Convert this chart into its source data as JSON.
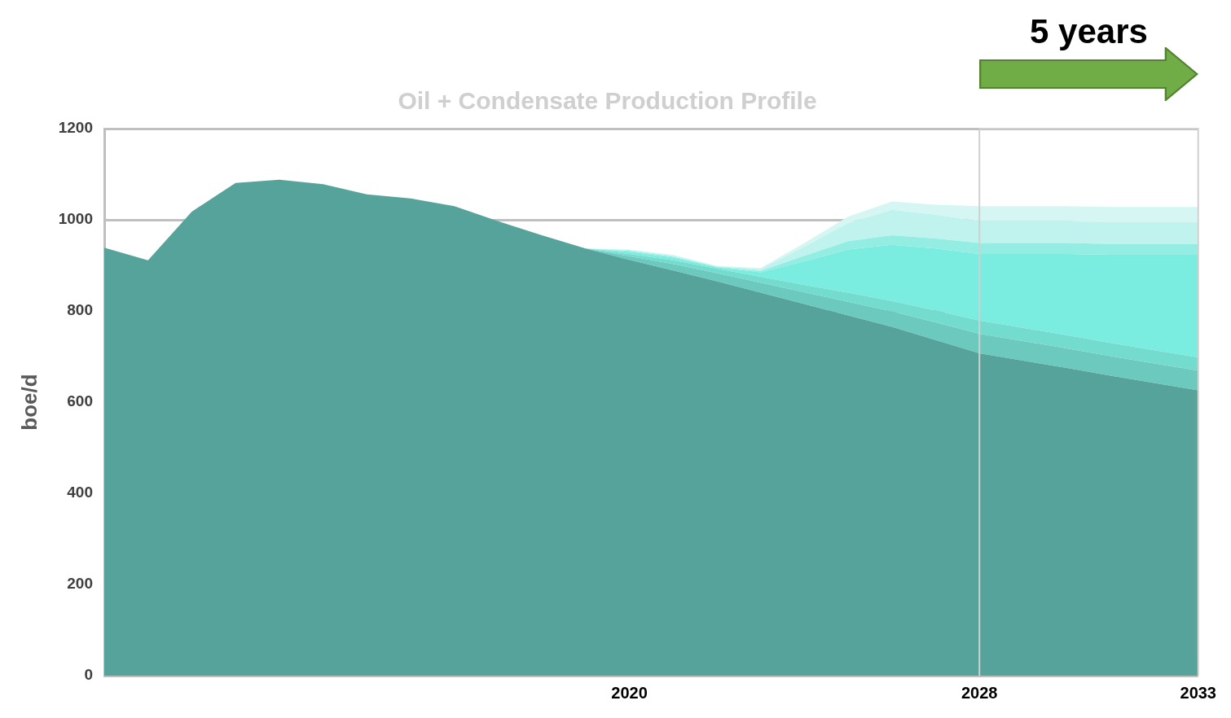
{
  "chart_data": {
    "type": "area",
    "title": "Oil + Condensate Production Profile",
    "ylabel": "boe/d",
    "categories": [
      null,
      null,
      null,
      null,
      null,
      null,
      null,
      null,
      null,
      null,
      null,
      null,
      "2020",
      null,
      null,
      null,
      null,
      null,
      null,
      null,
      "2028",
      null,
      null,
      null,
      null,
      "2033"
    ],
    "stacked": true,
    "series": [
      {
        "color": "#55a39a",
        "values": [
          939,
          911,
          1018,
          1081,
          1088,
          1078,
          1056,
          1047,
          1030,
          997,
          966,
          937,
          912,
          889,
          865,
          840,
          815,
          790,
          765,
          736,
          707,
          691,
          675,
          658,
          642,
          626
        ]
      },
      {
        "color": "#6bcabd",
        "values": [
          null,
          null,
          null,
          null,
          null,
          null,
          null,
          null,
          null,
          null,
          null,
          0,
          8,
          14,
          18,
          22,
          26,
          30,
          34,
          39,
          43,
          43,
          43,
          43,
          43,
          43
        ]
      },
      {
        "color": "#74dbcf",
        "values": [
          null,
          null,
          null,
          null,
          null,
          null,
          null,
          null,
          null,
          null,
          null,
          0,
          5,
          8,
          10,
          13,
          16,
          20,
          23,
          26,
          29,
          29,
          29,
          29,
          29,
          29
        ]
      },
      {
        "color": "#7aece0",
        "values": [
          null,
          null,
          null,
          null,
          null,
          null,
          null,
          null,
          null,
          null,
          null,
          0,
          5,
          6,
          3,
          10,
          52,
          95,
          123,
          136,
          146,
          162,
          178,
          193,
          209,
          225
        ]
      },
      {
        "color": "#93ede3",
        "values": [
          null,
          null,
          null,
          null,
          null,
          null,
          null,
          null,
          null,
          null,
          null,
          0,
          2,
          2,
          1,
          3,
          12,
          18,
          21,
          22,
          24,
          24,
          24,
          24,
          24,
          24
        ]
      },
      {
        "color": "#c0f3ed",
        "values": [
          null,
          null,
          null,
          null,
          null,
          null,
          null,
          null,
          null,
          null,
          null,
          0,
          2,
          2,
          1,
          4,
          20,
          40,
          56,
          52,
          48,
          48,
          48,
          48,
          48,
          48
        ]
      },
      {
        "color": "#d6f6f3",
        "values": [
          null,
          null,
          null,
          null,
          null,
          null,
          null,
          null,
          null,
          null,
          null,
          0,
          1,
          2,
          1,
          2,
          8,
          14,
          18,
          22,
          33,
          33,
          33,
          33,
          33,
          33
        ]
      }
    ],
    "ylim": [
      0,
      1200
    ],
    "yticks": [
      0,
      200,
      400,
      600,
      800,
      1000,
      1200
    ],
    "grid": "y",
    "ref_lines": [
      {
        "axis": "x",
        "value": "2028",
        "color": "#d0d0d0"
      }
    ],
    "annotations": [
      "5 years"
    ]
  }
}
